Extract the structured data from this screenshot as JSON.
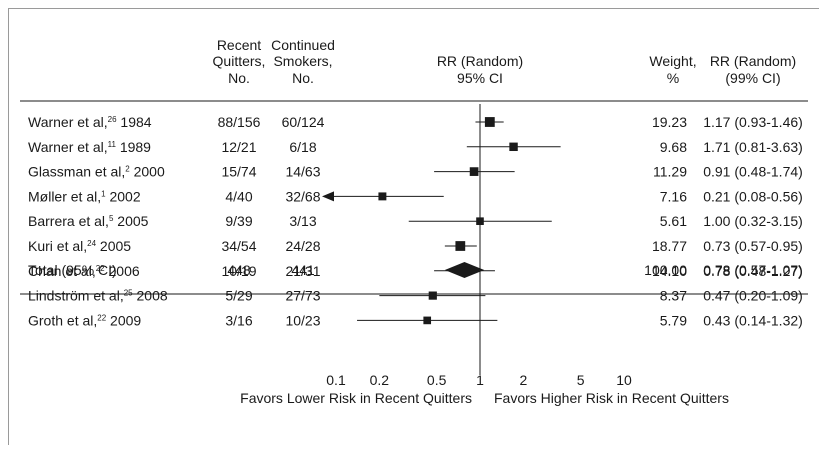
{
  "headers": {
    "recent": [
      "Recent",
      "Quitters,",
      "No."
    ],
    "continued": [
      "Continued",
      "Smokers,",
      "No."
    ],
    "rr_ci": [
      "RR (Random)",
      "95% CI"
    ],
    "weight": [
      "Weight,",
      "%"
    ],
    "rr_99": [
      "RR (Random)",
      "(99% CI)"
    ]
  },
  "studies": [
    {
      "author": "Warner et al,",
      "ref": "26",
      "year": "1984",
      "recent": "88/156",
      "continued": "60/124",
      "weight": "19.23",
      "rr_text": "1.17 (0.93-1.46)"
    },
    {
      "author": "Warner et al,",
      "ref": "11",
      "year": "1989",
      "recent": "12/21",
      "continued": "6/18",
      "weight": "9.68",
      "rr_text": "1.71 (0.81-3.63)"
    },
    {
      "author": "Glassman et al,",
      "ref": "2",
      "year": "2000",
      "recent": "15/74",
      "continued": "14/63",
      "weight": "11.29",
      "rr_text": "0.91 (0.48-1.74)"
    },
    {
      "author": "Møller et al,",
      "ref": "1",
      "year": "2002",
      "recent": "4/40",
      "continued": "32/68",
      "weight": "7.16",
      "rr_text": "0.21 (0.08-0.56)"
    },
    {
      "author": "Barrera et al,",
      "ref": "5",
      "year": "2005",
      "recent": "9/39",
      "continued": "3/13",
      "weight": "5.61",
      "rr_text": "1.00 (0.32-3.15)"
    },
    {
      "author": "Kuri et al,",
      "ref": "24",
      "year": "2005",
      "recent": "34/54",
      "continued": "24/28",
      "weight": "18.77",
      "rr_text": "0.73 (0.57-0.95)"
    },
    {
      "author": "Chan et al,",
      "ref": "22",
      "year": "2006",
      "recent": "10/19",
      "continued": "21/31",
      "weight": "14.10",
      "rr_text": "0.78 (0.48-1.27)"
    },
    {
      "author": "Lindström et al,",
      "ref": "25",
      "year": "2008",
      "recent": "5/29",
      "continued": "27/73",
      "weight": "8.37",
      "rr_text": "0.47 (0.20-1.09)"
    },
    {
      "author": "Groth et al,",
      "ref": "22",
      "year": "2009",
      "recent": "3/16",
      "continued": "10/23",
      "weight": "5.79",
      "rr_text": "0.43 (0.14-1.32)"
    }
  ],
  "total": {
    "label": "Total (95% CI)",
    "recent": "448",
    "continued": "441",
    "weight": "100.00",
    "rr_text": "0.78 (0.57-1.07)"
  },
  "axis": {
    "tick_labels": [
      "0.1",
      "0.2",
      "0.5",
      "1",
      "2",
      "5",
      "10"
    ],
    "left_label": "Favors Lower Risk in Recent Quitters",
    "right_label": "Favors Higher Risk in Recent Quitters"
  },
  "chart_data": {
    "type": "forest",
    "x_scale": "log",
    "xlim": [
      0.1,
      10
    ],
    "reference_line": 1,
    "x_ticks": [
      0.1,
      0.2,
      0.5,
      1,
      2,
      5,
      10
    ],
    "points": [
      {
        "rr": 1.17,
        "lo": 0.93,
        "hi": 1.46
      },
      {
        "rr": 1.71,
        "lo": 0.81,
        "hi": 3.63
      },
      {
        "rr": 0.91,
        "lo": 0.48,
        "hi": 1.74
      },
      {
        "rr": 0.21,
        "lo": 0.08,
        "hi": 0.56
      },
      {
        "rr": 1.0,
        "lo": 0.32,
        "hi": 3.15
      },
      {
        "rr": 0.73,
        "lo": 0.57,
        "hi": 0.95
      },
      {
        "rr": 0.78,
        "lo": 0.48,
        "hi": 1.27
      },
      {
        "rr": 0.47,
        "lo": 0.2,
        "hi": 1.09
      },
      {
        "rr": 0.43,
        "lo": 0.14,
        "hi": 1.32
      }
    ],
    "pooled": {
      "rr": 0.78,
      "lo": 0.57,
      "hi": 1.07
    }
  }
}
